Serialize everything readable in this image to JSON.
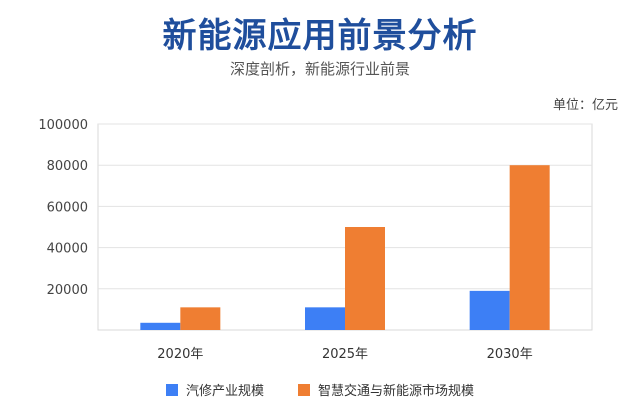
{
  "header": {
    "title": "新能源应用前景分析",
    "subtitle": "深度剖析，新能源行业前景",
    "unit_label": "单位：亿元"
  },
  "chart_data": {
    "type": "bar",
    "title": "新能源应用前景分析",
    "subtitle": "深度剖析，新能源行业前景",
    "unit": "单位：亿元",
    "categories": [
      "2020年",
      "2025年",
      "2030年"
    ],
    "series": [
      {
        "name": "汽修产业规模",
        "color": "#3d7ff5",
        "values": [
          3500,
          11000,
          19000
        ]
      },
      {
        "name": "智慧交通与新能源市场规模",
        "color": "#ef7e32",
        "values": [
          11000,
          50000,
          80000
        ]
      }
    ],
    "yticks": [
      "20000",
      "40000",
      "60000",
      "80000",
      "100000"
    ],
    "ylim": [
      0,
      100000
    ],
    "grid": true,
    "legend_position": "bottom"
  }
}
